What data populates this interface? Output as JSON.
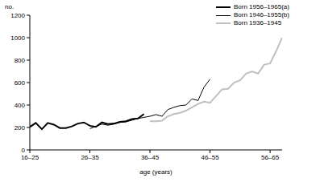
{
  "chart_data": {
    "type": "line",
    "x_label": "age (years)",
    "y_label": "no.",
    "x": [
      0,
      1,
      2,
      3,
      4,
      5,
      6,
      7,
      8,
      9,
      10,
      11,
      12,
      13,
      14,
      15,
      16,
      17,
      18,
      19,
      20,
      21,
      22,
      23,
      24,
      25,
      26,
      27,
      28,
      29,
      30,
      31,
      32,
      33,
      34,
      35,
      36,
      37,
      38,
      39,
      40,
      41,
      42
    ],
    "xlim": [
      0,
      42
    ],
    "xticks": [
      {
        "value": 0,
        "label": "16–25"
      },
      {
        "value": 10,
        "label": "26–35"
      },
      {
        "value": 20,
        "label": "36–45"
      },
      {
        "value": 30,
        "label": "46–55"
      },
      {
        "value": 40,
        "label": "56–65"
      }
    ],
    "ylim": [
      0,
      1200
    ],
    "yticks": [
      0,
      200,
      400,
      600,
      800,
      1000,
      1200
    ],
    "grid": false,
    "legend": "top-right",
    "series": [
      {
        "name": "Born 1956–1965(a)",
        "color": "#000000",
        "values": [
          205,
          240,
          185,
          240,
          225,
          195,
          195,
          210,
          235,
          245,
          215,
          205,
          245,
          230,
          235,
          250,
          255,
          275,
          280,
          320,
          null,
          null,
          null,
          null,
          null,
          null,
          null,
          null,
          null,
          null,
          null,
          null,
          null,
          null,
          null,
          null,
          null,
          null,
          null,
          null,
          null,
          null,
          null
        ]
      },
      {
        "name": "Born 1946–1955(b)",
        "color": "#000000",
        "values": [
          null,
          null,
          null,
          null,
          null,
          null,
          null,
          null,
          null,
          null,
          190,
          210,
          230,
          220,
          230,
          245,
          250,
          265,
          280,
          290,
          300,
          315,
          300,
          360,
          380,
          395,
          400,
          455,
          440,
          560,
          630,
          null,
          null,
          null,
          null,
          null,
          null,
          null,
          null,
          null,
          null,
          null,
          null
        ]
      },
      {
        "name": "Born 1936–1945",
        "color": "#c0c0c0",
        "values": [
          null,
          null,
          null,
          null,
          null,
          null,
          null,
          null,
          null,
          null,
          null,
          null,
          null,
          null,
          null,
          null,
          null,
          null,
          null,
          null,
          255,
          255,
          260,
          300,
          320,
          330,
          350,
          380,
          410,
          430,
          420,
          480,
          540,
          545,
          600,
          620,
          680,
          700,
          680,
          760,
          770,
          880,
          1000
        ]
      }
    ]
  }
}
